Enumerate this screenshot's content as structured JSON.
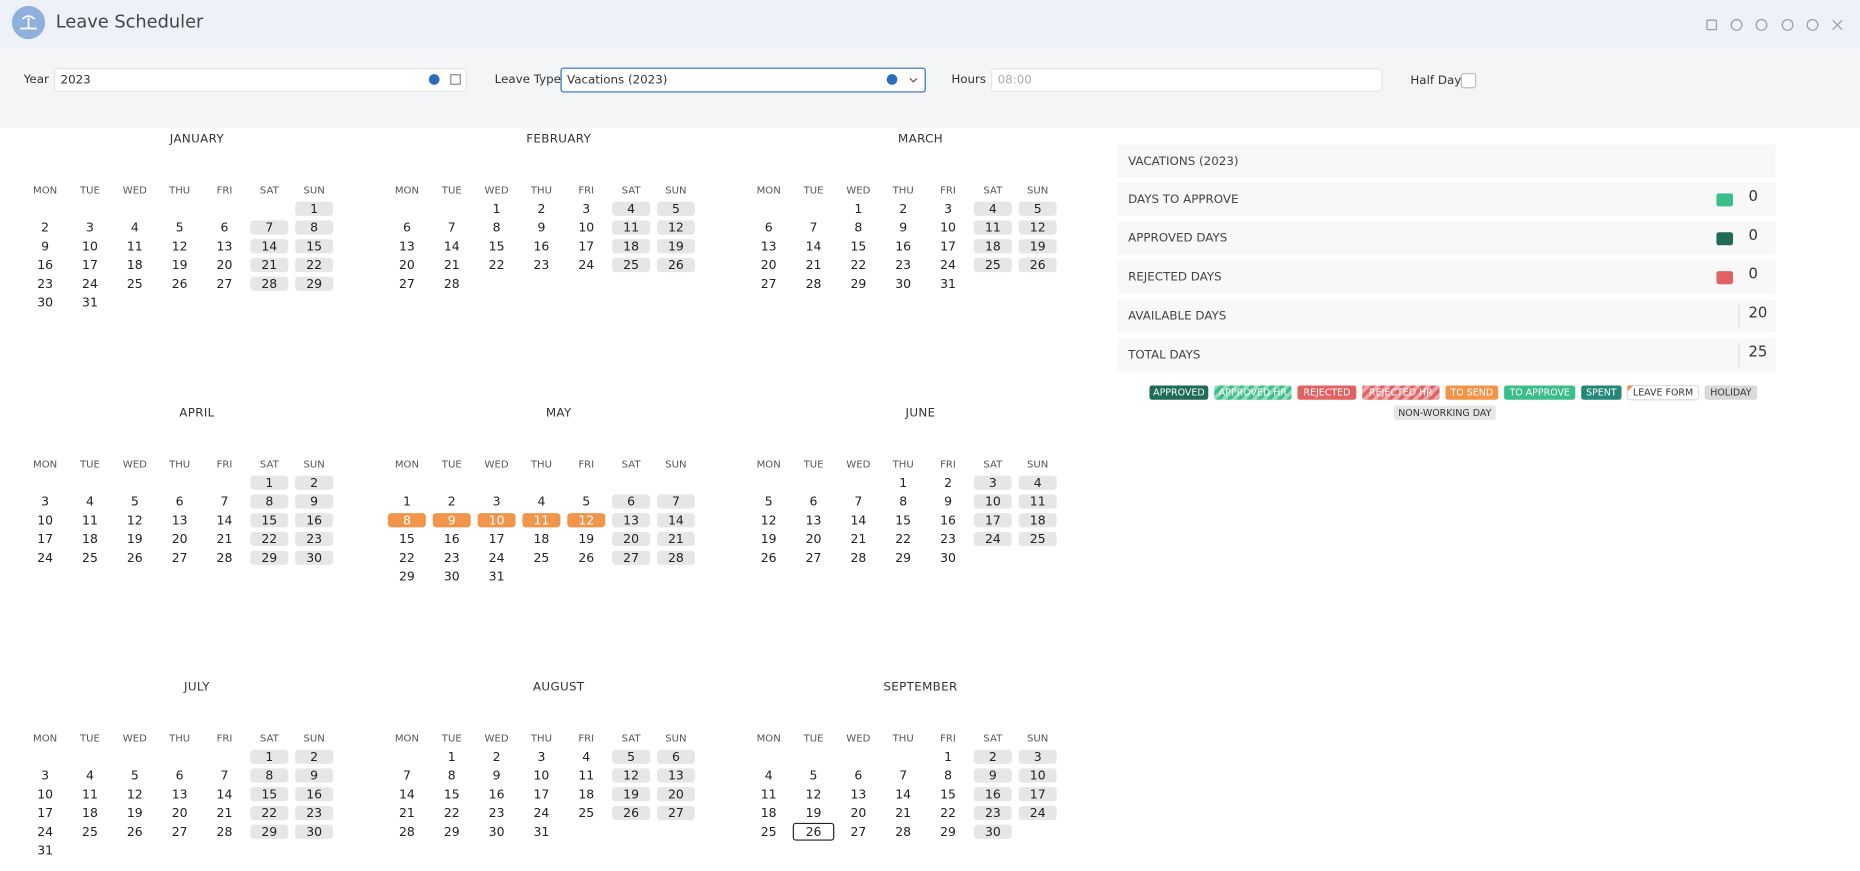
{
  "header": {
    "title": "Leave Scheduler"
  },
  "form": {
    "year_label": "Year",
    "year_value": "2023",
    "leave_type_label": "Leave Type",
    "leave_type_value": "Vacations (2023)",
    "hours_label": "Hours",
    "hours_placeholder": "08:00",
    "half_day_label": "Half Day"
  },
  "calendar": {
    "weekdays": [
      "MON",
      "TUE",
      "WED",
      "THU",
      "FRI",
      "SAT",
      "SUN"
    ],
    "months": [
      {
        "name": "JANUARY",
        "weeks": [
          [
            null,
            null,
            null,
            null,
            null,
            null,
            1
          ],
          [
            2,
            3,
            4,
            5,
            6,
            7,
            8
          ],
          [
            9,
            10,
            11,
            12,
            13,
            14,
            15
          ],
          [
            16,
            17,
            18,
            19,
            20,
            21,
            22
          ],
          [
            23,
            24,
            25,
            26,
            27,
            28,
            29
          ],
          [
            30,
            31
          ]
        ]
      },
      {
        "name": "FEBRUARY",
        "weeks": [
          [
            null,
            null,
            1,
            2,
            3,
            4,
            5
          ],
          [
            6,
            7,
            8,
            9,
            10,
            11,
            12
          ],
          [
            13,
            14,
            15,
            16,
            17,
            18,
            19
          ],
          [
            20,
            21,
            22,
            23,
            24,
            25,
            26
          ],
          [
            27,
            28
          ]
        ]
      },
      {
        "name": "MARCH",
        "weeks": [
          [
            null,
            null,
            1,
            2,
            3,
            4,
            5
          ],
          [
            6,
            7,
            8,
            9,
            10,
            11,
            12
          ],
          [
            13,
            14,
            15,
            16,
            17,
            18,
            19
          ],
          [
            20,
            21,
            22,
            23,
            24,
            25,
            26
          ],
          [
            27,
            28,
            29,
            30,
            31
          ]
        ]
      },
      {
        "name": "APRIL",
        "weeks": [
          [
            null,
            null,
            null,
            null,
            null,
            1,
            2
          ],
          [
            3,
            4,
            5,
            6,
            7,
            8,
            9
          ],
          [
            10,
            11,
            12,
            13,
            14,
            15,
            16
          ],
          [
            17,
            18,
            19,
            20,
            21,
            22,
            23
          ],
          [
            24,
            25,
            26,
            27,
            28,
            29,
            30
          ]
        ]
      },
      {
        "name": "MAY",
        "weeks": [
          [
            null,
            null,
            null,
            null,
            null,
            null,
            null
          ],
          [
            1,
            2,
            3,
            4,
            5,
            6,
            7
          ],
          [
            8,
            9,
            10,
            11,
            12,
            13,
            14
          ],
          [
            15,
            16,
            17,
            18,
            19,
            20,
            21
          ],
          [
            22,
            23,
            24,
            25,
            26,
            27,
            28
          ],
          [
            29,
            30,
            31
          ]
        ]
      },
      {
        "name": "JUNE",
        "weeks": [
          [
            null,
            null,
            null,
            1,
            2,
            3,
            4
          ],
          [
            5,
            6,
            7,
            8,
            9,
            10,
            11
          ],
          [
            12,
            13,
            14,
            15,
            16,
            17,
            18
          ],
          [
            19,
            20,
            21,
            22,
            23,
            24,
            25
          ],
          [
            26,
            27,
            28,
            29,
            30
          ]
        ]
      },
      {
        "name": "JULY",
        "weeks": [
          [
            null,
            null,
            null,
            null,
            null,
            1,
            2
          ],
          [
            3,
            4,
            5,
            6,
            7,
            8,
            9
          ],
          [
            10,
            11,
            12,
            13,
            14,
            15,
            16
          ],
          [
            17,
            18,
            19,
            20,
            21,
            22,
            23
          ],
          [
            24,
            25,
            26,
            27,
            28,
            29,
            30
          ],
          [
            31
          ]
        ]
      },
      {
        "name": "AUGUST",
        "weeks": [
          [
            null,
            1,
            2,
            3,
            4,
            5,
            6
          ],
          [
            7,
            8,
            9,
            10,
            11,
            12,
            13
          ],
          [
            14,
            15,
            16,
            17,
            18,
            19,
            20
          ],
          [
            21,
            22,
            23,
            24,
            25,
            26,
            27
          ],
          [
            28,
            29,
            30,
            31
          ]
        ]
      },
      {
        "name": "SEPTEMBER",
        "weeks": [
          [
            null,
            null,
            null,
            null,
            1,
            2,
            3
          ],
          [
            4,
            5,
            6,
            7,
            8,
            9,
            10
          ],
          [
            11,
            12,
            13,
            14,
            15,
            16,
            17
          ],
          [
            18,
            19,
            20,
            21,
            22,
            23,
            24
          ],
          [
            25,
            26,
            27,
            28,
            29,
            30
          ]
        ]
      }
    ]
  },
  "summary": {
    "title": "VACATIONS (2023)",
    "rows": [
      {
        "label": "DAYS TO APPROVE",
        "value": 0,
        "color": "#3dbd8a"
      },
      {
        "label": "APPROVED DAYS",
        "value": 0,
        "color": "#1f6b55"
      },
      {
        "label": "REJECTED DAYS",
        "value": 0,
        "color": "#e06262"
      },
      {
        "label": "AVAILABLE DAYS",
        "value": 20
      },
      {
        "label": "TOTAL DAYS",
        "value": 25
      }
    ]
  },
  "legend": [
    {
      "label": "APPROVED",
      "color": "#1f6b55"
    },
    {
      "label": "APPROVED HR",
      "color": "#3dbd8a",
      "striped": true
    },
    {
      "label": "REJECTED",
      "color": "#e06262"
    },
    {
      "label": "REJECTED HR",
      "color": "#e06262",
      "striped": true
    },
    {
      "label": "TO SEND",
      "color": "#f0954a"
    },
    {
      "label": "TO APPROVE",
      "color": "#3dbd8a"
    },
    {
      "label": "SPENT",
      "color": "#24877a"
    },
    {
      "label": "LEAVE FORM",
      "color": "#ffffff"
    },
    {
      "label": "HOLIDAY",
      "color": "#d9d9d9"
    },
    {
      "label": "NON-WORKING DAY",
      "color": "#e6e6e6"
    }
  ]
}
